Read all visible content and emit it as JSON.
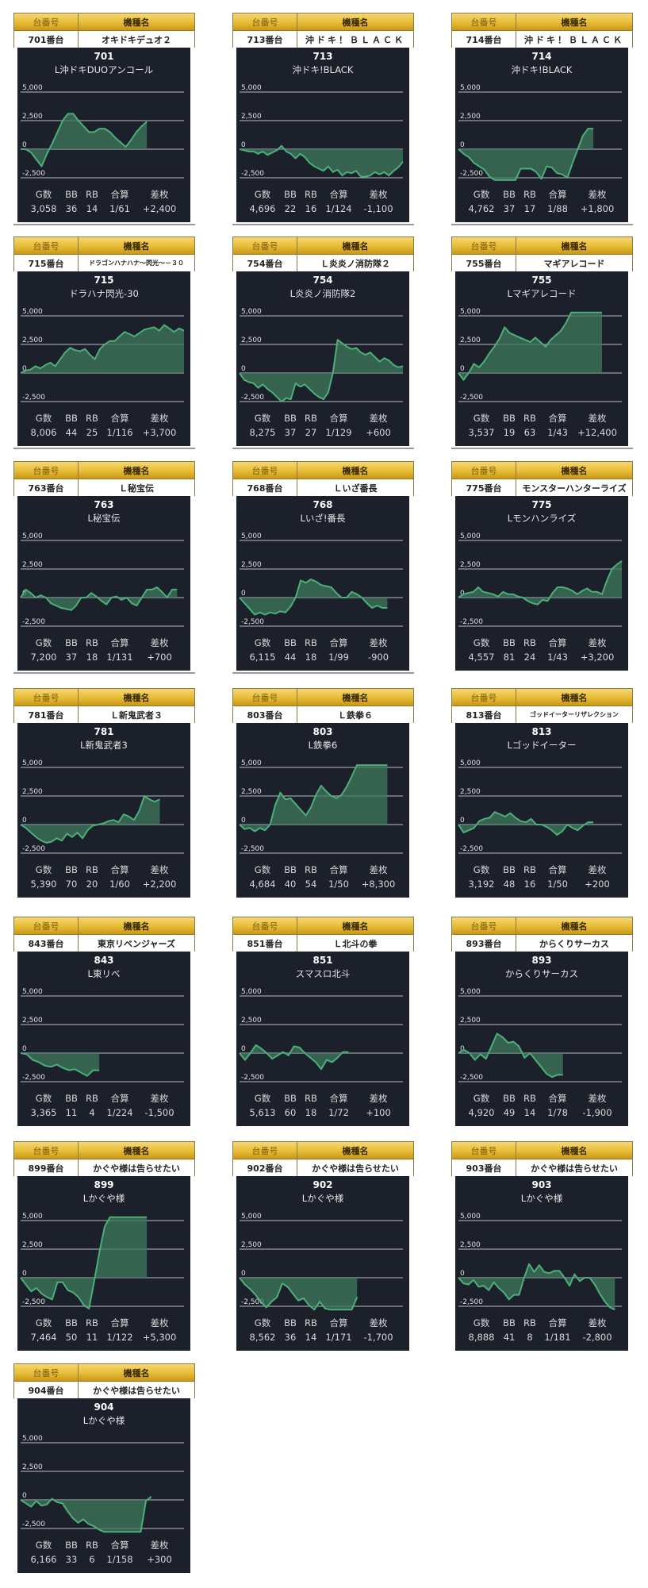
{
  "header_labels": {
    "machine_no": "台番号",
    "model": "機種名"
  },
  "stat_labels": [
    "G数",
    "BB",
    "RB",
    "合算",
    "差枚"
  ],
  "colors": {
    "gold_top": "#f6d774",
    "gold_bottom": "#c8971a",
    "panel": "#1c202b",
    "line": "#4caf7a",
    "fill": "#3e7a5c"
  },
  "chart_data": [
    {
      "type": "area",
      "id": "701",
      "machine": "701番台",
      "model": "オキドキデュオ２",
      "number": "701",
      "title": "L沖ドキDUOアンコール",
      "y_ticks": [
        "5,000",
        "2,500",
        "0",
        "-2,500"
      ],
      "ylim": [
        -2500,
        5000
      ],
      "values": [
        0,
        0,
        -300,
        -900,
        -1500,
        -400,
        500,
        1500,
        2500,
        3100,
        3100,
        2500,
        2000,
        1500,
        1500,
        1800,
        1800,
        1500,
        1000,
        600,
        200,
        800,
        1500,
        2000,
        2400
      ],
      "stats": {
        "games": "3,058",
        "bb": "36",
        "rb": "14",
        "total": "1/61",
        "diff": "+2,400"
      }
    },
    {
      "type": "area",
      "id": "713",
      "machine": "713番台",
      "model": "沖ドキ！ＢＬＡＣＫ",
      "number": "713",
      "title": "沖ドキ!BLACK",
      "y_ticks": [
        "5,000",
        "2,500",
        "0",
        "-2,500"
      ],
      "ylim": [
        -2500,
        5000
      ],
      "values": [
        0,
        -100,
        -200,
        -200,
        -400,
        -200,
        -500,
        -300,
        -100,
        300,
        -200,
        -400,
        -800,
        -400,
        -700,
        -1200,
        -1500,
        -1700,
        -1900,
        -1500,
        -2000,
        -1800,
        -2300,
        -2000,
        -2100,
        -1900,
        -2400,
        -2400,
        -2300,
        -2000,
        -2200,
        -2000,
        -2300,
        -1900,
        -1600,
        -1100
      ],
      "stats": {
        "games": "4,696",
        "bb": "22",
        "rb": "16",
        "total": "1/124",
        "diff": "-1,100"
      }
    },
    {
      "type": "area",
      "id": "714",
      "machine": "714番台",
      "model": "沖ドキ！ＢＬＡＣＫ",
      "number": "714",
      "title": "沖ドキ!BLACK",
      "y_ticks": [
        "5,000",
        "2,500",
        "0",
        "-2,500"
      ],
      "ylim": [
        -2500,
        5000
      ],
      "values": [
        0,
        -400,
        -700,
        -1200,
        -1500,
        -1800,
        -2400,
        -2700,
        -2700,
        -2700,
        -2700,
        -2700,
        -1700,
        -1700,
        -1700,
        -2000,
        -2600,
        -1500,
        -1600,
        -2100,
        -2200,
        -2500,
        -1200,
        0,
        1200,
        1800,
        1800
      ],
      "stats": {
        "games": "4,762",
        "bb": "37",
        "rb": "17",
        "total": "1/88",
        "diff": "+1,800"
      }
    },
    {
      "type": "area",
      "id": "715",
      "machine": "715番台",
      "model": "ドラゴンハナハナ〜閃光〜－３０",
      "number": "715",
      "title": "ドラハナ閃光-30",
      "y_ticks": [
        "5,000",
        "2,500",
        "0",
        "-2,500"
      ],
      "ylim": [
        -2500,
        5000
      ],
      "values": [
        0,
        200,
        300,
        600,
        400,
        700,
        900,
        600,
        1200,
        1800,
        2200,
        2000,
        1900,
        2100,
        1600,
        1200,
        2100,
        2500,
        2800,
        2800,
        3200,
        3600,
        3400,
        3200,
        3500,
        3800,
        3900,
        4000,
        3700,
        4200,
        3900,
        3600,
        3900,
        3700
      ],
      "stats": {
        "games": "8,006",
        "bb": "44",
        "rb": "25",
        "total": "1/116",
        "diff": "+3,700"
      }
    },
    {
      "type": "area",
      "id": "754",
      "machine": "754番台",
      "model": "Ｌ炎炎ノ消防隊２",
      "number": "754",
      "title": "L炎炎ノ消防隊2",
      "y_ticks": [
        "5,000",
        "2,500",
        "0",
        "-2,500"
      ],
      "ylim": [
        -2500,
        5000
      ],
      "values": [
        0,
        -600,
        -800,
        -900,
        -1300,
        -1000,
        -1400,
        -1700,
        -2100,
        -2500,
        -2200,
        -2300,
        -900,
        -1200,
        -1000,
        -1400,
        -1800,
        -2100,
        -2300,
        -1700,
        0,
        2900,
        2600,
        2300,
        2100,
        2200,
        1800,
        1600,
        1800,
        1400,
        1000,
        1300,
        1100,
        700,
        500,
        600
      ],
      "stats": {
        "games": "8,275",
        "bb": "37",
        "rb": "27",
        "total": "1/129",
        "diff": "+600"
      }
    },
    {
      "type": "area",
      "id": "755",
      "machine": "755番台",
      "model": "マギアレコード",
      "number": "755",
      "title": "Lマギアレコード",
      "y_ticks": [
        "5,000",
        "2,500",
        "0",
        "-2,500"
      ],
      "ylim": [
        -2500,
        5000
      ],
      "values": [
        0,
        -600,
        0,
        800,
        500,
        1000,
        1700,
        2300,
        3000,
        4000,
        3500,
        3300,
        3100,
        2900,
        2700,
        3100,
        2700,
        2300,
        2900,
        3300,
        3700,
        4400,
        5300,
        5300,
        5300,
        5300,
        5300,
        5300,
        5300
      ],
      "stats": {
        "games": "3,537",
        "bb": "19",
        "rb": "63",
        "total": "1/43",
        "diff": "+12,400"
      }
    },
    {
      "type": "area",
      "id": "763",
      "machine": "763番台",
      "model": "Ｌ秘宝伝",
      "number": "763",
      "title": "L秘宝伝",
      "y_ticks": [
        "5,000",
        "2,500",
        "0",
        "-2,500"
      ],
      "ylim": [
        -2500,
        5000
      ],
      "values": [
        0,
        700,
        400,
        0,
        200,
        0,
        -500,
        -700,
        -900,
        -1000,
        -1100,
        -700,
        0,
        0,
        400,
        100,
        -300,
        -600,
        0,
        100,
        -200,
        0,
        -500,
        -700,
        0,
        700,
        700,
        900,
        500,
        0,
        700,
        700
      ],
      "stats": {
        "games": "7,200",
        "bb": "37",
        "rb": "18",
        "total": "1/131",
        "diff": "+700"
      }
    },
    {
      "type": "area",
      "id": "768",
      "machine": "768番台",
      "model": "Ｌいざ番長",
      "number": "768",
      "title": "Lいざ!番長",
      "y_ticks": [
        "5,000",
        "2,500",
        "0",
        "-2,500"
      ],
      "ylim": [
        -2500,
        5000
      ],
      "values": [
        0,
        -500,
        -1000,
        -1500,
        -1300,
        -1500,
        -1300,
        -1400,
        -1200,
        -1300,
        -800,
        0,
        1500,
        1300,
        1600,
        1400,
        1100,
        1000,
        900,
        400,
        0,
        0,
        500,
        300,
        0,
        -500,
        -900,
        -700,
        -900,
        -900
      ],
      "stats": {
        "games": "6,115",
        "bb": "44",
        "rb": "18",
        "total": "1/99",
        "diff": "-900"
      }
    },
    {
      "type": "area",
      "id": "775",
      "machine": "775番台",
      "model": "モンスターハンターライズ",
      "number": "775",
      "title": "Lモンハンライズ",
      "y_ticks": [
        "5,000",
        "2,500",
        "0",
        "-2,500"
      ],
      "ylim": [
        -2500,
        5000
      ],
      "values": [
        0,
        300,
        400,
        500,
        900,
        500,
        400,
        300,
        100,
        500,
        300,
        300,
        100,
        0,
        -300,
        -500,
        -600,
        -200,
        -300,
        400,
        900,
        900,
        800,
        600,
        300,
        600,
        800,
        500,
        500,
        300,
        1500,
        2500,
        2900,
        3200
      ],
      "stats": {
        "games": "4,557",
        "bb": "81",
        "rb": "24",
        "total": "1/43",
        "diff": "+3,200"
      }
    },
    {
      "type": "area",
      "id": "781",
      "machine": "781番台",
      "model": "Ｌ新鬼武者３",
      "number": "781",
      "title": "L新鬼武者3",
      "y_ticks": [
        "5,000",
        "2,500",
        "0",
        "-2,500"
      ],
      "ylim": [
        -2500,
        5000
      ],
      "values": [
        0,
        -300,
        -700,
        -1100,
        -1400,
        -1600,
        -1500,
        -1200,
        -1400,
        -800,
        -1100,
        -700,
        -1200,
        -500,
        -100,
        0,
        100,
        300,
        400,
        200,
        900,
        700,
        400,
        1200,
        2500,
        2200,
        2000,
        2200
      ],
      "stats": {
        "games": "5,390",
        "bb": "70",
        "rb": "20",
        "total": "1/60",
        "diff": "+2,200"
      }
    },
    {
      "type": "area",
      "id": "803",
      "machine": "803番台",
      "model": "Ｌ鉄拳６",
      "number": "803",
      "title": "L鉄拳6",
      "y_ticks": [
        "5,000",
        "2,500",
        "0",
        "-2,500"
      ],
      "ylim": [
        -2500,
        5000
      ],
      "values": [
        0,
        -400,
        -300,
        -600,
        -300,
        -500,
        0,
        1700,
        2800,
        2200,
        2300,
        1800,
        1300,
        800,
        1500,
        2600,
        3400,
        2900,
        2500,
        2300,
        2600,
        3300,
        4200,
        5200,
        5200,
        5200,
        5200,
        5200,
        5200,
        5200
      ],
      "stats": {
        "games": "4,684",
        "bb": "40",
        "rb": "54",
        "total": "1/50",
        "diff": "+8,300"
      }
    },
    {
      "type": "area",
      "id": "813",
      "machine": "813番台",
      "model": "ゴッドイーターリザレクション",
      "number": "813",
      "title": "Lゴッドイーター",
      "y_ticks": [
        "5,000",
        "2,500",
        "0",
        "-2,500"
      ],
      "ylim": [
        -2500,
        5000
      ],
      "values": [
        0,
        -700,
        -500,
        -300,
        300,
        500,
        600,
        1100,
        900,
        700,
        1000,
        600,
        300,
        200,
        500,
        0,
        0,
        -200,
        -500,
        -900,
        -600,
        0,
        -300,
        -500,
        -100,
        200,
        200
      ],
      "stats": {
        "games": "3,192",
        "bb": "48",
        "rb": "16",
        "total": "1/50",
        "diff": "+200"
      }
    },
    {
      "type": "area",
      "id": "843",
      "machine": "843番台",
      "model": "東京リベンジャーズ",
      "number": "843",
      "title": "L東リベ",
      "y_ticks": [
        "5,000",
        "2,500",
        "0",
        "-2,500"
      ],
      "ylim": [
        -2500,
        5000
      ],
      "values": [
        0,
        -100,
        -600,
        -800,
        -1100,
        -1200,
        -1000,
        -1300,
        -1500,
        -1400,
        -1700,
        -2000,
        -1500,
        -1500
      ],
      "stats": {
        "games": "3,365",
        "bb": "11",
        "rb": "4",
        "total": "1/224",
        "diff": "-1,500"
      }
    },
    {
      "type": "area",
      "id": "851",
      "machine": "851番台",
      "model": "Ｌ北斗の拳",
      "number": "851",
      "title": "スマスロ北斗",
      "y_ticks": [
        "5,000",
        "2,500",
        "0",
        "-2,500"
      ],
      "ylim": [
        -2500,
        5000
      ],
      "values": [
        0,
        -600,
        0,
        700,
        400,
        0,
        -500,
        -200,
        100,
        -200,
        600,
        500,
        0,
        -400,
        -800,
        -1400,
        -600,
        -800,
        -400,
        100,
        100
      ],
      "stats": {
        "games": "5,613",
        "bb": "60",
        "rb": "18",
        "total": "1/72",
        "diff": "+100"
      }
    },
    {
      "type": "area",
      "id": "893",
      "machine": "893番台",
      "model": "からくりサーカス",
      "number": "893",
      "title": "からくりサーカス",
      "y_ticks": [
        "5,000",
        "2,500",
        "0",
        "-2,500"
      ],
      "ylim": [
        -2500,
        5000
      ],
      "values": [
        0,
        300,
        0,
        -600,
        -100,
        -500,
        600,
        1700,
        1400,
        900,
        1000,
        600,
        -400,
        0,
        -600,
        -1200,
        -1800,
        -2100,
        -1900,
        -1900
      ],
      "stats": {
        "games": "4,920",
        "bb": "49",
        "rb": "14",
        "total": "1/78",
        "diff": "-1,900"
      }
    },
    {
      "type": "area",
      "id": "899",
      "machine": "899番台",
      "model": "かぐや様は告らせたい",
      "number": "899",
      "title": "Lかぐや様",
      "y_ticks": [
        "5,000",
        "2,500",
        "0",
        "-2,500"
      ],
      "ylim": [
        -2500,
        5000
      ],
      "values": [
        0,
        -600,
        -1200,
        -900,
        -1400,
        -1700,
        -1900,
        -400,
        -400,
        -1100,
        -1300,
        -1700,
        -2400,
        -2700,
        -300,
        2300,
        4500,
        5300,
        5300,
        5300,
        5300,
        5300,
        5300,
        5300,
        5300
      ],
      "stats": {
        "games": "7,464",
        "bb": "50",
        "rb": "11",
        "total": "1/122",
        "diff": "+5,300"
      }
    },
    {
      "type": "area",
      "id": "902",
      "machine": "902番台",
      "model": "かぐや様は告らせたい",
      "number": "902",
      "title": "Lかぐや様",
      "y_ticks": [
        "5,000",
        "2,500",
        "0",
        "-2,500"
      ],
      "ylim": [
        -2500,
        5000
      ],
      "values": [
        0,
        -600,
        -1000,
        -1500,
        -2100,
        -2600,
        -2100,
        -1700,
        -500,
        -800,
        -1400,
        -2000,
        -1800,
        -2400,
        -2800,
        -2100,
        -2700,
        -2800,
        -2800,
        -2800,
        -2800,
        -2800,
        -1700
      ],
      "stats": {
        "games": "8,562",
        "bb": "36",
        "rb": "14",
        "total": "1/171",
        "diff": "-1,700"
      }
    },
    {
      "type": "area",
      "id": "903",
      "machine": "903番台",
      "model": "かぐや様は告らせたい",
      "number": "903",
      "title": "Lかぐや様",
      "y_ticks": [
        "5,000",
        "2,500",
        "0",
        "-2,500"
      ],
      "ylim": [
        -2500,
        5000
      ],
      "values": [
        0,
        -500,
        -600,
        -200,
        -800,
        -700,
        -1100,
        -400,
        -900,
        -1300,
        -1900,
        -1500,
        -1500,
        0,
        1200,
        500,
        1100,
        500,
        400,
        600,
        600,
        0,
        -700,
        300,
        -300,
        0,
        0,
        -600,
        -1400,
        -2100,
        -2600,
        -2800
      ],
      "stats": {
        "games": "8,888",
        "bb": "41",
        "rb": "8",
        "total": "1/181",
        "diff": "-2,800"
      }
    },
    {
      "type": "area",
      "id": "904",
      "machine": "904番台",
      "model": "かぐや様は告らせたい",
      "number": "904",
      "title": "Lかぐや様",
      "y_ticks": [
        "5,000",
        "2,500",
        "0",
        "-2,500"
      ],
      "ylim": [
        -2500,
        5000
      ],
      "values": [
        0,
        -300,
        -600,
        -100,
        -500,
        -400,
        100,
        -200,
        -300,
        -1000,
        -1600,
        -2000,
        -1700,
        -2100,
        -2300,
        -2600,
        -2800,
        -2800,
        -2800,
        -2800,
        -2800,
        -2800,
        -2800,
        -2800,
        -100,
        300
      ],
      "stats": {
        "games": "6,166",
        "bb": "33",
        "rb": "6",
        "total": "1/158",
        "diff": "+300"
      }
    }
  ]
}
